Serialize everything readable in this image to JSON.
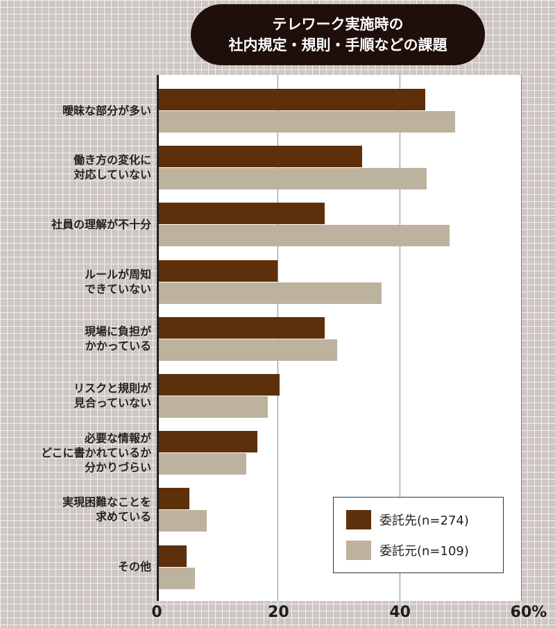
{
  "chart_data": {
    "type": "bar",
    "orientation": "horizontal",
    "title": "テレワーク実施時の\n社内規定・規則・手順などの課題",
    "categories": [
      "曖昧な部分が多い",
      "働き方の変化に\n対応していない",
      "社員の理解が不十分",
      "ルールが周知\nできていない",
      "現場に負担が\nかかっている",
      "リスクと規則が\n見合っていない",
      "必要な情報が\nどこに書かれているか\n分かりづらい",
      "実現困難なことを\n求めている",
      "その他"
    ],
    "series": [
      {
        "name": "委託先(n=274)",
        "color": "#5e2f0b",
        "values": [
          44.2,
          33.8,
          27.6,
          19.8,
          27.6,
          20.2,
          16.5,
          5.4,
          4.9
        ]
      },
      {
        "name": "委託元(n=109)",
        "color": "#bcb29e",
        "values": [
          49.0,
          44.4,
          48.1,
          37.0,
          29.7,
          18.3,
          14.7,
          8.2,
          6.3
        ]
      }
    ],
    "xlim": [
      0,
      60
    ],
    "xticks": [
      {
        "v": 0,
        "label": "0"
      },
      {
        "v": 20,
        "label": "20"
      },
      {
        "v": 40,
        "label": "40"
      },
      {
        "v": 60,
        "label": "60%"
      }
    ],
    "grid": true,
    "legend": "bottom-right"
  }
}
